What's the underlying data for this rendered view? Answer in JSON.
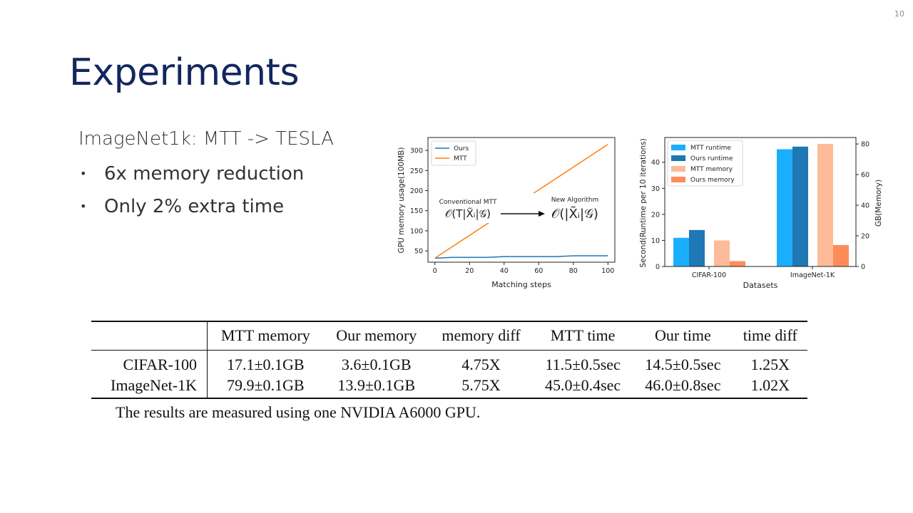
{
  "slide": {
    "number": "10",
    "title": "Experiments"
  },
  "content": {
    "subtitle": "ImageNet1k: MTT -> TESLA",
    "bullets": [
      "6x memory reduction",
      "Only 2% extra time"
    ]
  },
  "chart_data": [
    {
      "type": "line",
      "title": "",
      "xlabel": "Matching steps",
      "ylabel": "GPU memory usage(100MB)",
      "xlim": [
        -4,
        104
      ],
      "ylim": [
        22,
        332
      ],
      "x_ticks": [
        0,
        20,
        40,
        60,
        80,
        100
      ],
      "y_ticks": [
        50,
        100,
        150,
        200,
        250,
        300
      ],
      "legend_position": "top-left",
      "series": [
        {
          "name": "Ours",
          "color": "#1f77b4",
          "x": [
            0,
            10,
            20,
            30,
            40,
            50,
            60,
            70,
            80,
            90,
            100
          ],
          "y": [
            32,
            34,
            34,
            34,
            36,
            36,
            36,
            36,
            38,
            38,
            38
          ]
        },
        {
          "name": "MTT",
          "color": "#ff7f0e",
          "x": [
            0,
            100
          ],
          "y": [
            32,
            315
          ]
        }
      ],
      "annotations": {
        "conventional_label": "Conventional MTT",
        "conventional_formula": "𝒪(T|X̃ᵢ|𝒢)",
        "new_label": "New Algorithm",
        "new_formula": "𝒪(|X̃ᵢ|𝒢)"
      }
    },
    {
      "type": "bar",
      "title": "",
      "xlabel": "Datasets",
      "ylabel_left": "Second(Runtime per 10 iterations)",
      "ylabel_right": "GB(Memory)",
      "categories": [
        "CIFAR-100",
        "ImageNet-1K"
      ],
      "ylim_left": [
        0,
        49.5
      ],
      "ylim_right": [
        0,
        84.2
      ],
      "y_ticks_left": [
        0,
        10,
        20,
        30,
        40
      ],
      "y_ticks_right": [
        0,
        20,
        40,
        60,
        80
      ],
      "legend_position": "top-left",
      "series": [
        {
          "name": "MTT runtime",
          "axis": "left",
          "color": "#1aaeff",
          "values": [
            11,
            45
          ]
        },
        {
          "name": "Ours runtime",
          "axis": "left",
          "color": "#1f77b4",
          "values": [
            14,
            46
          ]
        },
        {
          "name": "MTT memory",
          "axis": "right",
          "color": "#fdbb9a",
          "values": [
            17,
            80
          ]
        },
        {
          "name": "Ours memory",
          "axis": "right",
          "color": "#fc8d59",
          "values": [
            3.5,
            14
          ]
        }
      ]
    }
  ],
  "table": {
    "headers": [
      "MTT memory",
      "Our memory",
      "memory diff",
      "MTT time",
      "Our time",
      "time diff"
    ],
    "rows": [
      {
        "label": "CIFAR-100",
        "cells": [
          "17.1±0.1GB",
          "3.6±0.1GB",
          "4.75X",
          "11.5±0.5sec",
          "14.5±0.5sec",
          "1.25X"
        ]
      },
      {
        "label": "ImageNet-1K",
        "cells": [
          "79.9±0.1GB",
          "13.9±0.1GB",
          "5.75X",
          "45.0±0.4sec",
          "46.0±0.8sec",
          "1.02X"
        ]
      }
    ],
    "caption": "The results are measured using one NVIDIA A6000 GPU."
  }
}
